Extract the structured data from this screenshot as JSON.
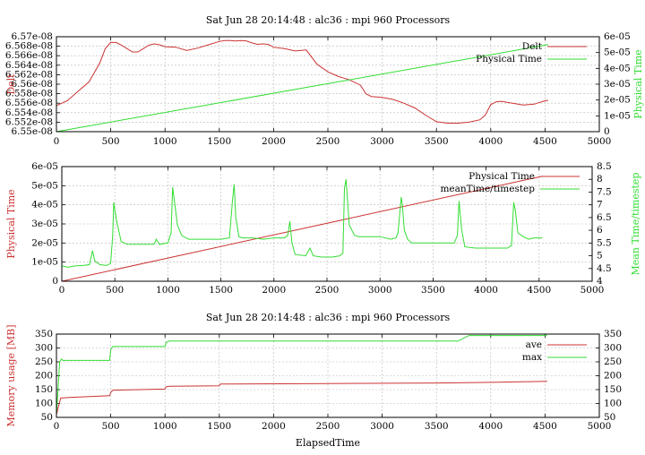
{
  "colors": {
    "red": "#cc3333",
    "green": "#33dd33",
    "grid": "#b8b8b8",
    "axis": "#000000"
  },
  "chart_data": [
    {
      "type": "line",
      "title": "Sat Jun 28 20:14:48 : alc36 : mpi 960 Processors",
      "xlabel": "",
      "ylabel": "Delt",
      "y2label": "Physical Time",
      "xlim": [
        0,
        5000
      ],
      "ylim": [
        6.55e-08,
        6.57e-08
      ],
      "y2lim": [
        0,
        6e-05
      ],
      "x_ticks": [
        "0",
        "500",
        "1000",
        "1500",
        "2000",
        "2500",
        "3000",
        "3500",
        "4000",
        "4500",
        "5000"
      ],
      "y_ticks": [
        "6.55e-08",
        "6.552e-08",
        "6.554e-08",
        "6.556e-08",
        "6.558e-08",
        "6.56e-08",
        "6.562e-08",
        "6.564e-08",
        "6.566e-08",
        "6.568e-08",
        "6.57e-08"
      ],
      "y2_ticks": [
        "0",
        "1e-05",
        "2e-05",
        "3e-05",
        "4e-05",
        "5e-05",
        "6e-05"
      ],
      "legend_placement": "top-right",
      "grid": true,
      "series": [
        {
          "name": "Delt",
          "axis": "y",
          "color": "#cc3333",
          "x": [
            0,
            100,
            200,
            300,
            400,
            450,
            500,
            550,
            600,
            650,
            700,
            750,
            800,
            850,
            900,
            950,
            1000,
            1100,
            1200,
            1300,
            1400,
            1500,
            1550,
            1600,
            1650,
            1700,
            1750,
            1800,
            1850,
            1900,
            1950,
            2000,
            2100,
            2200,
            2300,
            2400,
            2500,
            2600,
            2700,
            2800,
            2850,
            2900,
            3000,
            3100,
            3200,
            3300,
            3400,
            3500,
            3600,
            3700,
            3800,
            3900,
            3950,
            4000,
            4050,
            4100,
            4200,
            4300,
            4400,
            4500,
            4530
          ],
          "y": [
            6.5555e-08,
            6.5565e-08,
            6.5585e-08,
            6.5605e-08,
            6.5645e-08,
            6.5675e-08,
            6.5688e-08,
            6.5688e-08,
            6.5682e-08,
            6.5675e-08,
            6.5668e-08,
            6.5668e-08,
            6.5675e-08,
            6.5682e-08,
            6.5685e-08,
            6.5683e-08,
            6.5679e-08,
            6.5678e-08,
            6.5671e-08,
            6.5676e-08,
            6.5683e-08,
            6.569e-08,
            6.5692e-08,
            6.5692e-08,
            6.5691e-08,
            6.5692e-08,
            6.5691e-08,
            6.5687e-08,
            6.5684e-08,
            6.5685e-08,
            6.5684e-08,
            6.5678e-08,
            6.5675e-08,
            6.567e-08,
            6.5672e-08,
            6.5642e-08,
            6.5626e-08,
            6.5616e-08,
            6.5609e-08,
            6.5598e-08,
            6.558e-08,
            6.5574e-08,
            6.5572e-08,
            6.5568e-08,
            6.556e-08,
            6.555e-08,
            6.5535e-08,
            6.5521e-08,
            6.5518e-08,
            6.5518e-08,
            6.552e-08,
            6.5525e-08,
            6.5535e-08,
            6.5557e-08,
            6.5563e-08,
            6.5564e-08,
            6.556e-08,
            6.5556e-08,
            6.5558e-08,
            6.5565e-08,
            6.5566e-08
          ]
        },
        {
          "name": "Physical Time",
          "axis": "y2",
          "color": "#33dd33",
          "x": [
            0,
            4530
          ],
          "y": [
            0,
            5.5e-05
          ]
        }
      ]
    },
    {
      "type": "line",
      "title": "",
      "xlabel": "",
      "ylabel": "Physical Time",
      "y2label": "Mean Time/timestep",
      "xlim": [
        0,
        5000
      ],
      "ylim": [
        0,
        6e-05
      ],
      "y2lim": [
        4,
        8.5
      ],
      "x_ticks": [
        "0",
        "500",
        "1000",
        "1500",
        "2000",
        "2500",
        "3000",
        "3500",
        "4000",
        "4500",
        "5000"
      ],
      "y_ticks": [
        "0",
        "1e-05",
        "2e-05",
        "3e-05",
        "4e-05",
        "5e-05",
        "6e-05"
      ],
      "y2_ticks": [
        "4",
        "4.5",
        "5",
        "5.5",
        "6",
        "6.5",
        "7",
        "7.5",
        "8",
        "8.5"
      ],
      "legend_placement": "top-right",
      "grid": true,
      "series": [
        {
          "name": "Physical Time",
          "axis": "y",
          "color": "#cc3333",
          "x": [
            0,
            4530
          ],
          "y": [
            0,
            5.5e-05
          ]
        },
        {
          "name": "meanTime/timestep",
          "axis": "y2",
          "color": "#33dd33",
          "x": [
            0,
            60,
            120,
            200,
            260,
            290,
            310,
            360,
            420,
            460,
            480,
            490,
            500,
            520,
            560,
            620,
            700,
            800,
            870,
            890,
            920,
            1000,
            1030,
            1045,
            1060,
            1090,
            1130,
            1170,
            1200,
            1300,
            1400,
            1500,
            1580,
            1610,
            1625,
            1640,
            1670,
            1700,
            1800,
            1900,
            2000,
            2100,
            2130,
            2150,
            2170,
            2200,
            2300,
            2340,
            2370,
            2450,
            2550,
            2620,
            2650,
            2665,
            2680,
            2710,
            2760,
            2800,
            2900,
            3000,
            3100,
            3150,
            3170,
            3200,
            3210,
            3230,
            3260,
            3300,
            3400,
            3500,
            3600,
            3700,
            3730,
            3745,
            3770,
            3800,
            3900,
            4000,
            4100,
            4200,
            4240,
            4260,
            4275,
            4300,
            4350,
            4400,
            4450,
            4500,
            4530
          ],
          "y": [
            4.6,
            4.55,
            4.6,
            4.62,
            4.65,
            5.2,
            4.8,
            4.65,
            4.62,
            4.7,
            5.8,
            7.1,
            6.8,
            6.3,
            5.55,
            5.45,
            5.45,
            5.45,
            5.45,
            5.65,
            5.45,
            5.5,
            5.9,
            7.7,
            7.2,
            6.2,
            5.8,
            5.7,
            5.65,
            5.65,
            5.65,
            5.65,
            5.7,
            7.2,
            7.8,
            6.5,
            5.75,
            5.7,
            5.7,
            5.65,
            5.7,
            5.7,
            5.8,
            6.35,
            5.5,
            5.05,
            5.0,
            5.3,
            5.0,
            4.95,
            4.95,
            5.0,
            5.1,
            7.65,
            8.0,
            6.2,
            5.8,
            5.75,
            5.75,
            5.75,
            5.65,
            5.7,
            5.9,
            7.3,
            7.0,
            6.0,
            5.65,
            5.5,
            5.5,
            5.5,
            5.5,
            5.5,
            5.8,
            7.15,
            6.0,
            5.35,
            5.3,
            5.3,
            5.3,
            5.3,
            5.4,
            7.1,
            6.8,
            5.9,
            5.75,
            5.65,
            5.7,
            5.7,
            5.7
          ]
        }
      ]
    },
    {
      "type": "line",
      "title": "Sat Jun 28 20:14:48 : alc36 : mpi 960 Processors",
      "xlabel": "ElapsedTime",
      "ylabel": "Memory usage [MB]",
      "y2label": "",
      "xlim": [
        0,
        5000
      ],
      "ylim": [
        50,
        350
      ],
      "y2lim": [
        50,
        350
      ],
      "x_ticks": [
        "0",
        "500",
        "1000",
        "1500",
        "2000",
        "2500",
        "3000",
        "3500",
        "4000",
        "4500",
        "5000"
      ],
      "y_ticks": [
        "50",
        "100",
        "150",
        "200",
        "250",
        "300",
        "350"
      ],
      "y2_ticks": [
        "50",
        "100",
        "150",
        "200",
        "250",
        "300",
        "350"
      ],
      "legend_placement": "top-right",
      "grid": true,
      "series": [
        {
          "name": "ave",
          "axis": "y",
          "color": "#cc3333",
          "x": [
            0,
            20,
            40,
            60,
            120,
            490,
            500,
            520,
            1000,
            1010,
            1040,
            1500,
            1510,
            1600,
            2500,
            3500,
            4000,
            4520
          ],
          "y": [
            60,
            90,
            120,
            120,
            122,
            128,
            140,
            148,
            152,
            160,
            162,
            164,
            170,
            170,
            172,
            174,
            176,
            180
          ]
        },
        {
          "name": "max",
          "axis": "y",
          "color": "#33dd33",
          "x": [
            0,
            15,
            30,
            45,
            60,
            490,
            500,
            520,
            1000,
            1010,
            1040,
            3700,
            3750,
            3800,
            4520
          ],
          "y": [
            60,
            150,
            250,
            260,
            255,
            255,
            295,
            305,
            305,
            320,
            325,
            325,
            335,
            345,
            345
          ]
        }
      ]
    }
  ]
}
